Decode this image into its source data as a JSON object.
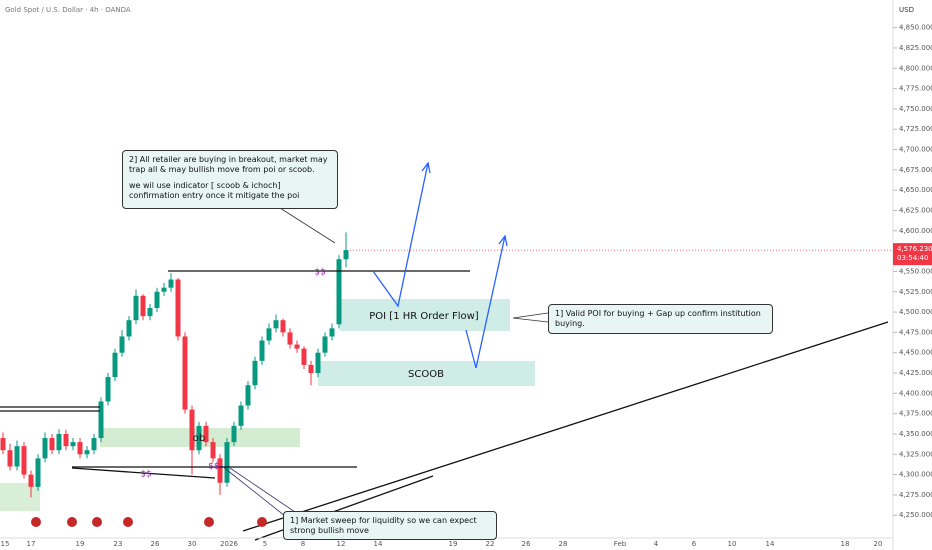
{
  "chart_data": {
    "type": "candlestick",
    "title": "Gold Spot / U.S. Dollar · 4h · OANDA",
    "currency": "USD",
    "categories": [
      "15",
      "17",
      "19",
      "23",
      "26",
      "30",
      "2026",
      "5",
      "8",
      "12",
      "14",
      "19",
      "22",
      "26",
      "28",
      "Feb",
      "4",
      "6",
      "10",
      "14",
      "18",
      "20"
    ],
    "open": [
      4345,
      4330,
      4310,
      4335,
      4300,
      4285,
      4320,
      4345,
      4330,
      4350,
      4335,
      4340,
      4325,
      4330,
      4345,
      4390,
      4420,
      4450,
      4470,
      4490,
      4520,
      4495,
      4505,
      4525,
      4530,
      4540,
      4470,
      4380,
      4330,
      4360,
      4340,
      4320,
      4290,
      4340,
      4360,
      4385,
      4410,
      4440,
      4465,
      4480,
      4490,
      4475,
      4460,
      4455,
      4435,
      4425,
      4450,
      4470,
      4485,
      4565
    ],
    "high": [
      4352,
      4338,
      4342,
      4340,
      4305,
      4325,
      4352,
      4350,
      4356,
      4355,
      4345,
      4345,
      4335,
      4350,
      4395,
      4425,
      4455,
      4478,
      4495,
      4528,
      4522,
      4510,
      4530,
      4536,
      4548,
      4542,
      4475,
      4385,
      4365,
      4365,
      4345,
      4325,
      4345,
      4365,
      4390,
      4415,
      4445,
      4470,
      4486,
      4497,
      4492,
      4480,
      4465,
      4458,
      4440,
      4455,
      4475,
      4486,
      4570,
      4598
    ],
    "low": [
      4325,
      4305,
      4305,
      4295,
      4272,
      4280,
      4315,
      4325,
      4325,
      4330,
      4330,
      4320,
      4320,
      4325,
      4340,
      4385,
      4415,
      4445,
      4465,
      4485,
      4490,
      4490,
      4500,
      4520,
      4525,
      4465,
      4375,
      4300,
      4325,
      4335,
      4315,
      4275,
      4285,
      4335,
      4355,
      4380,
      4405,
      4435,
      4460,
      4475,
      4470,
      4455,
      4450,
      4430,
      4410,
      4420,
      4445,
      4465,
      4480,
      4555
    ],
    "close": [
      4330,
      4310,
      4335,
      4300,
      4285,
      4320,
      4345,
      4330,
      4350,
      4335,
      4340,
      4325,
      4330,
      4345,
      4390,
      4420,
      4450,
      4470,
      4490,
      4520,
      4495,
      4505,
      4525,
      4530,
      4540,
      4470,
      4380,
      4330,
      4360,
      4340,
      4320,
      4290,
      4340,
      4360,
      4385,
      4410,
      4440,
      4465,
      4480,
      4490,
      4475,
      4460,
      4455,
      4435,
      4425,
      4450,
      4470,
      4480,
      4565,
      4576.23
    ],
    "up_color": "#089981",
    "down_color": "#f23645",
    "ylim": [
      4222,
      4884
    ],
    "yticks": [
      {
        "value": 4250,
        "label": "4,250.000"
      },
      {
        "value": 4275,
        "label": "4,275.000"
      },
      {
        "value": 4300,
        "label": "4,300.000"
      },
      {
        "value": 4325,
        "label": "4,325.000"
      },
      {
        "value": 4350,
        "label": "4,350.000"
      },
      {
        "value": 4375,
        "label": "4,375.000"
      },
      {
        "value": 4400,
        "label": "4,400.000"
      },
      {
        "value": 4425,
        "label": "4,425.000"
      },
      {
        "value": 4450,
        "label": "4,450.000"
      },
      {
        "value": 4475,
        "label": "4,475.000"
      },
      {
        "value": 4500,
        "label": "4,500.000"
      },
      {
        "value": 4525,
        "label": "4,525.000"
      },
      {
        "value": 4550,
        "label": "4,550.000"
      },
      {
        "value": 4575,
        "label": "4,575.000"
      },
      {
        "value": 4600,
        "label": "4,600.000"
      },
      {
        "value": 4625,
        "label": "4,625.000"
      },
      {
        "value": 4650,
        "label": "4,650.000"
      },
      {
        "value": 4675,
        "label": "4,675.000"
      },
      {
        "value": 4700,
        "label": "4,700.000"
      },
      {
        "value": 4725,
        "label": "4,725.000"
      },
      {
        "value": 4750,
        "label": "4,750.000"
      },
      {
        "value": 4775,
        "label": "4,775.000"
      },
      {
        "value": 4800,
        "label": "4,800.000"
      },
      {
        "value": 4825,
        "label": "4,825.000"
      },
      {
        "value": 4850,
        "label": "4,850.000"
      }
    ],
    "last_price": {
      "value": 4576.23,
      "label": "4,576.230"
    },
    "countdown": "03:54:40",
    "annotations": {
      "note_top": [
        "2] All retailer are buying in breakout, market may trap all & may bullish move from poi or scoob.",
        "we wil use indicator [ scoob & ichoch] confirmation entry once it mitigate the poi"
      ],
      "note_right": "1] Valid POI for buying + Gap up confirm institution buying.",
      "note_bottom": "1] Market sweep for liquidity so we can expect strong bullish move",
      "poi": "POI [1 HR Order Flow]",
      "scoob": "SCOOB",
      "ob": "ob",
      "liquidity": [
        "$$",
        "$$",
        "$$"
      ]
    }
  }
}
